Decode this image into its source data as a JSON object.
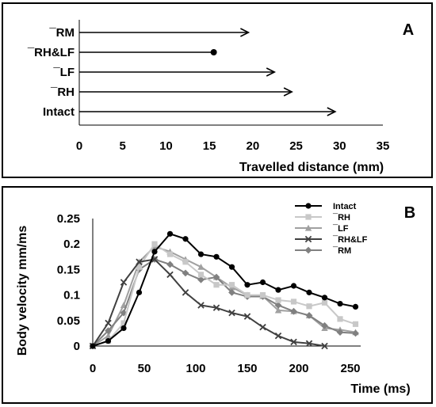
{
  "chart_data": [
    {
      "type": "bar",
      "panel_label": "A",
      "orientation": "horizontal",
      "style": "arrow",
      "categories": [
        "¯RM",
        "¯RH&LF",
        "¯LF",
        "¯RH",
        "Intact"
      ],
      "values": [
        19.5,
        15.5,
        22.5,
        24.5,
        29.5
      ],
      "arrowhead": [
        "arrow",
        "dot",
        "arrow",
        "arrow",
        "arrow"
      ],
      "xlabel": "Travelled distance (mm)",
      "ylabel": "",
      "xlim": [
        0,
        35
      ],
      "xticks": [
        0,
        5,
        10,
        15,
        20,
        25,
        30,
        35
      ],
      "tick_labels": [
        "0",
        "5",
        "10",
        "15",
        "20",
        "25",
        "30",
        "35"
      ],
      "grid": false
    },
    {
      "type": "line",
      "panel_label": "B",
      "xlabel": "Time (ms)",
      "ylabel": "Body velocity mm/ms",
      "xlim": [
        0,
        260
      ],
      "ylim": [
        0,
        0.25
      ],
      "xticks": [
        0,
        50,
        100,
        150,
        200,
        250
      ],
      "xtick_labels": [
        "0",
        "50",
        "100",
        "150",
        "200",
        "250"
      ],
      "yticks": [
        0,
        0.05,
        0.1,
        0.15,
        0.2,
        0.25
      ],
      "ytick_labels": [
        "0",
        "0.05",
        "0.1",
        "0.15",
        "0.2",
        "0.25"
      ],
      "legend_position": "top-right",
      "grid": false,
      "series": [
        {
          "name": "Intact",
          "color": "#000000",
          "marker": "circle",
          "x": [
            0,
            15,
            30,
            45,
            60,
            75,
            90,
            105,
            120,
            135,
            150,
            165,
            180,
            195,
            210,
            225,
            240,
            255
          ],
          "values": [
            0,
            0.01,
            0.035,
            0.105,
            0.185,
            0.22,
            0.21,
            0.18,
            0.175,
            0.155,
            0.12,
            0.125,
            0.11,
            0.118,
            0.105,
            0.095,
            0.083,
            0.077
          ]
        },
        {
          "name": "¯RH",
          "color": "#c8c8c8",
          "marker": "square",
          "x": [
            0,
            15,
            30,
            45,
            60,
            75,
            90,
            105,
            120,
            135,
            150,
            165,
            180,
            195,
            210,
            225,
            240,
            255
          ],
          "values": [
            0,
            0.01,
            0.045,
            0.155,
            0.2,
            0.18,
            0.165,
            0.14,
            0.12,
            0.12,
            0.1,
            0.1,
            0.09,
            0.087,
            0.078,
            0.085,
            0.053,
            0.043
          ]
        },
        {
          "name": "¯LF",
          "color": "#a0a0a0",
          "marker": "triangle",
          "x": [
            0,
            15,
            30,
            45,
            60,
            75,
            90,
            105,
            120,
            135,
            150,
            165,
            180,
            195,
            210,
            225,
            240,
            255
          ],
          "values": [
            0,
            0.02,
            0.08,
            0.165,
            0.195,
            0.185,
            0.17,
            0.155,
            0.135,
            0.115,
            0.1,
            0.098,
            0.07,
            0.068,
            0.06,
            0.035,
            0.032,
            0.027
          ]
        },
        {
          "name": "¯RH&LF",
          "color": "#404040",
          "marker": "x",
          "x": [
            0,
            15,
            30,
            45,
            60,
            75,
            90,
            105,
            120,
            135,
            150,
            165,
            180,
            195,
            210,
            225
          ],
          "values": [
            0,
            0.045,
            0.125,
            0.165,
            0.17,
            0.14,
            0.105,
            0.08,
            0.075,
            0.065,
            0.058,
            0.037,
            0.02,
            0.008,
            0.005,
            0
          ]
        },
        {
          "name": "¯RM",
          "color": "#808080",
          "marker": "diamond",
          "x": [
            0,
            15,
            30,
            45,
            60,
            75,
            90,
            105,
            120,
            135,
            150,
            165,
            180,
            195,
            210,
            225,
            240,
            255
          ],
          "values": [
            0,
            0.03,
            0.065,
            0.15,
            0.17,
            0.16,
            0.143,
            0.13,
            0.135,
            0.105,
            0.097,
            0.097,
            0.08,
            0.068,
            0.06,
            0.04,
            0.027,
            0.025
          ]
        }
      ]
    }
  ]
}
